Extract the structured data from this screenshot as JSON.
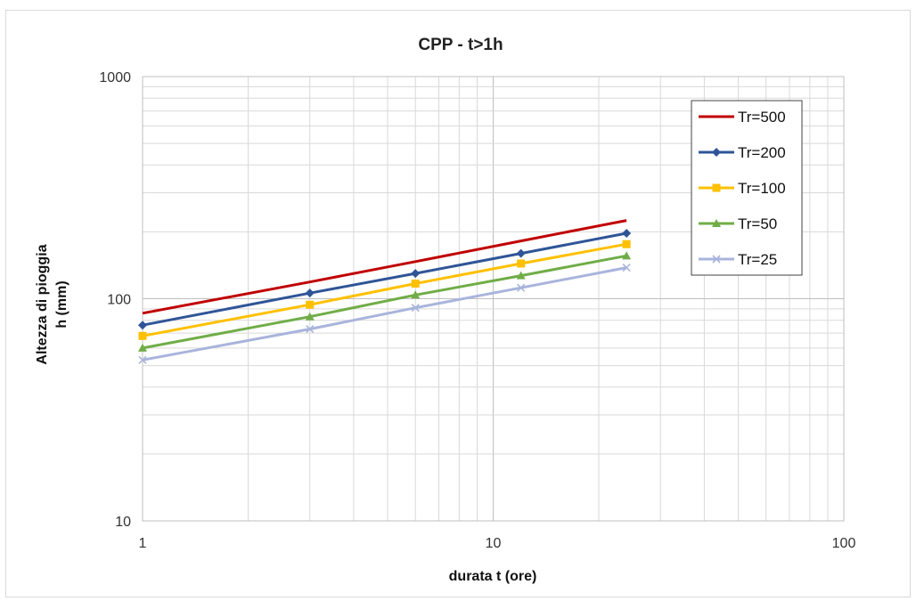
{
  "chart_data": {
    "type": "line",
    "title": "CPP - t>1h",
    "xlabel": "durata t (ore)",
    "ylabel": [
      "Altezza di pioggia",
      "h (mm)"
    ],
    "x_scale": "log",
    "y_scale": "log",
    "xlim": [
      1,
      100
    ],
    "ylim": [
      10,
      1000
    ],
    "x_ticks": [
      "1",
      "10",
      "100"
    ],
    "y_ticks": [
      "10",
      "100",
      "1000"
    ],
    "grid": true,
    "legend_position": "top-right",
    "x": [
      1,
      3,
      6,
      12,
      24
    ],
    "series": [
      {
        "name": "Tr=500",
        "color": "#c00000",
        "marker": "none",
        "values": [
          86,
          119,
          147,
          182,
          225
        ]
      },
      {
        "name": "Tr=200",
        "color": "#2f5597",
        "marker": "diamond",
        "values": [
          76,
          106,
          130,
          160,
          197
        ]
      },
      {
        "name": "Tr=100",
        "color": "#ffc000",
        "marker": "square",
        "values": [
          68,
          94,
          117,
          144,
          176
        ]
      },
      {
        "name": "Tr=50",
        "color": "#70ad47",
        "marker": "triangle",
        "values": [
          60,
          83,
          104,
          127,
          156
        ]
      },
      {
        "name": "Tr=25",
        "color": "#a9b4dc",
        "marker": "x",
        "values": [
          53,
          73,
          91,
          112,
          138
        ]
      }
    ]
  }
}
